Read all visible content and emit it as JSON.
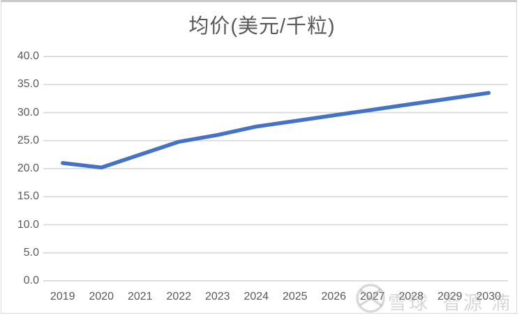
{
  "title": "均价(美元/千粒)",
  "chart_data": {
    "type": "line",
    "title": "均价(美元/千粒)",
    "categories": [
      "2019",
      "2020",
      "2021",
      "2022",
      "2023",
      "2024",
      "2025",
      "2026",
      "2027",
      "2028",
      "2029",
      "2030"
    ],
    "series": [
      {
        "name": "均价(美元/千粒)",
        "values": [
          21.0,
          20.2,
          22.5,
          24.8,
          26.0,
          27.5,
          28.5,
          29.5,
          30.5,
          31.5,
          32.5,
          33.5
        ]
      }
    ],
    "xlabel": "",
    "ylabel": "",
    "ylim": [
      0,
      40
    ],
    "ytick_step": 5,
    "ytick_labels": [
      "0.0",
      "5.0",
      "10.0",
      "15.0",
      "20.0",
      "25.0",
      "30.0",
      "35.0",
      "40.0"
    ],
    "grid": true,
    "legend_position": "none",
    "line_color": "#4472C4",
    "gridline_color": "#d9d9d9",
    "text_color": "#595959"
  },
  "watermark": {
    "logo": "xueqiu-snowball-icon",
    "brand": "雪球",
    "user_part1": "智源",
    "user_part2": "湳"
  }
}
